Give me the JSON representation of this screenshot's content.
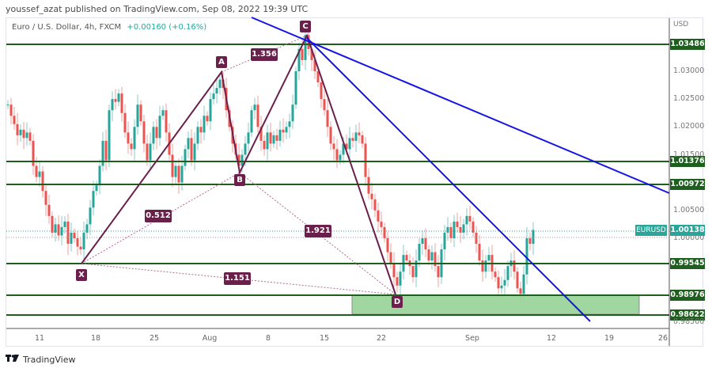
{
  "header": {
    "publisher_line": "youssef_azat published on TradingView.com, Sep 08, 2022 19:39 UTC"
  },
  "legend": {
    "symbol_desc": "Euro / U.S. Dollar, 4h, FXCM",
    "change": "+0.00160 (+0.16%)"
  },
  "footer": {
    "logo_mark": "17",
    "logo_text": "TradingView"
  },
  "colors": {
    "up": "#26a69a",
    "down": "#ef5350",
    "level_line": "#1e5e1e",
    "trendline": "#1414e6",
    "pattern": "#6b1f4b",
    "zone_fill": "#9bd49b",
    "price_badge": "#2aa59a"
  },
  "chart_data": {
    "type": "candlestick",
    "title": "Euro / U.S. Dollar, 4h, FXCM",
    "symbol": "EURUSD",
    "currency": "USD",
    "last_price": "1.00138",
    "change": "+0.00160 (+0.16%)",
    "ylim": [
      0.985,
      1.0395
    ],
    "y_ticks": [
      "1.03000",
      "1.02500",
      "1.02000",
      "1.01500",
      "1.00500",
      "1.00000",
      "0.98500"
    ],
    "x_ticks": [
      "11",
      "18",
      "25",
      "Aug",
      "8",
      "15",
      "22",
      "Sep",
      "12",
      "19",
      "26"
    ],
    "horizontal_levels": [
      {
        "price": "1.03486",
        "label": "1.03486"
      },
      {
        "price": "1.01376",
        "label": "1.01376"
      },
      {
        "price": "1.00972",
        "label": "1.00972"
      },
      {
        "price": "0.99545",
        "label": "0.99545"
      },
      {
        "price": "0.98976",
        "label": "0.98976"
      },
      {
        "price": "0.98622",
        "label": "0.98622"
      }
    ],
    "demand_zone": {
      "top": "0.98976",
      "bottom": "0.98622",
      "from": "Aug 19",
      "to": "Sep 23"
    },
    "harmonic_pattern": {
      "points": [
        {
          "label": "X",
          "date": "Jul 14",
          "price": 0.9953
        },
        {
          "label": "A",
          "date": "Aug 2",
          "price": 1.0294
        },
        {
          "label": "B",
          "date": "Aug 3",
          "price": 1.0123
        },
        {
          "label": "C",
          "date": "Aug 11",
          "price": 1.0368
        },
        {
          "label": "D",
          "date": "Aug 23",
          "price": 0.9902
        }
      ],
      "ratios": [
        {
          "between": "XB",
          "value": "0.512"
        },
        {
          "between": "AC",
          "value": "1.356"
        },
        {
          "between": "BD",
          "value": "1.921"
        },
        {
          "between": "XD",
          "value": "1.151"
        }
      ]
    },
    "trendlines": [
      {
        "name": "upper",
        "from": [
          "Jul 29",
          1.0405
        ],
        "to": [
          "Sep 26",
          1.0078
        ]
      },
      {
        "name": "lower",
        "from": [
          "Aug 11",
          1.0355
        ],
        "to": [
          "Sep 16",
          0.9857
        ]
      }
    ],
    "price_labels": [
      {
        "text": "EURUSD",
        "kind": "symbol-tag"
      },
      {
        "text": "1.00138",
        "kind": "last-price"
      }
    ]
  }
}
